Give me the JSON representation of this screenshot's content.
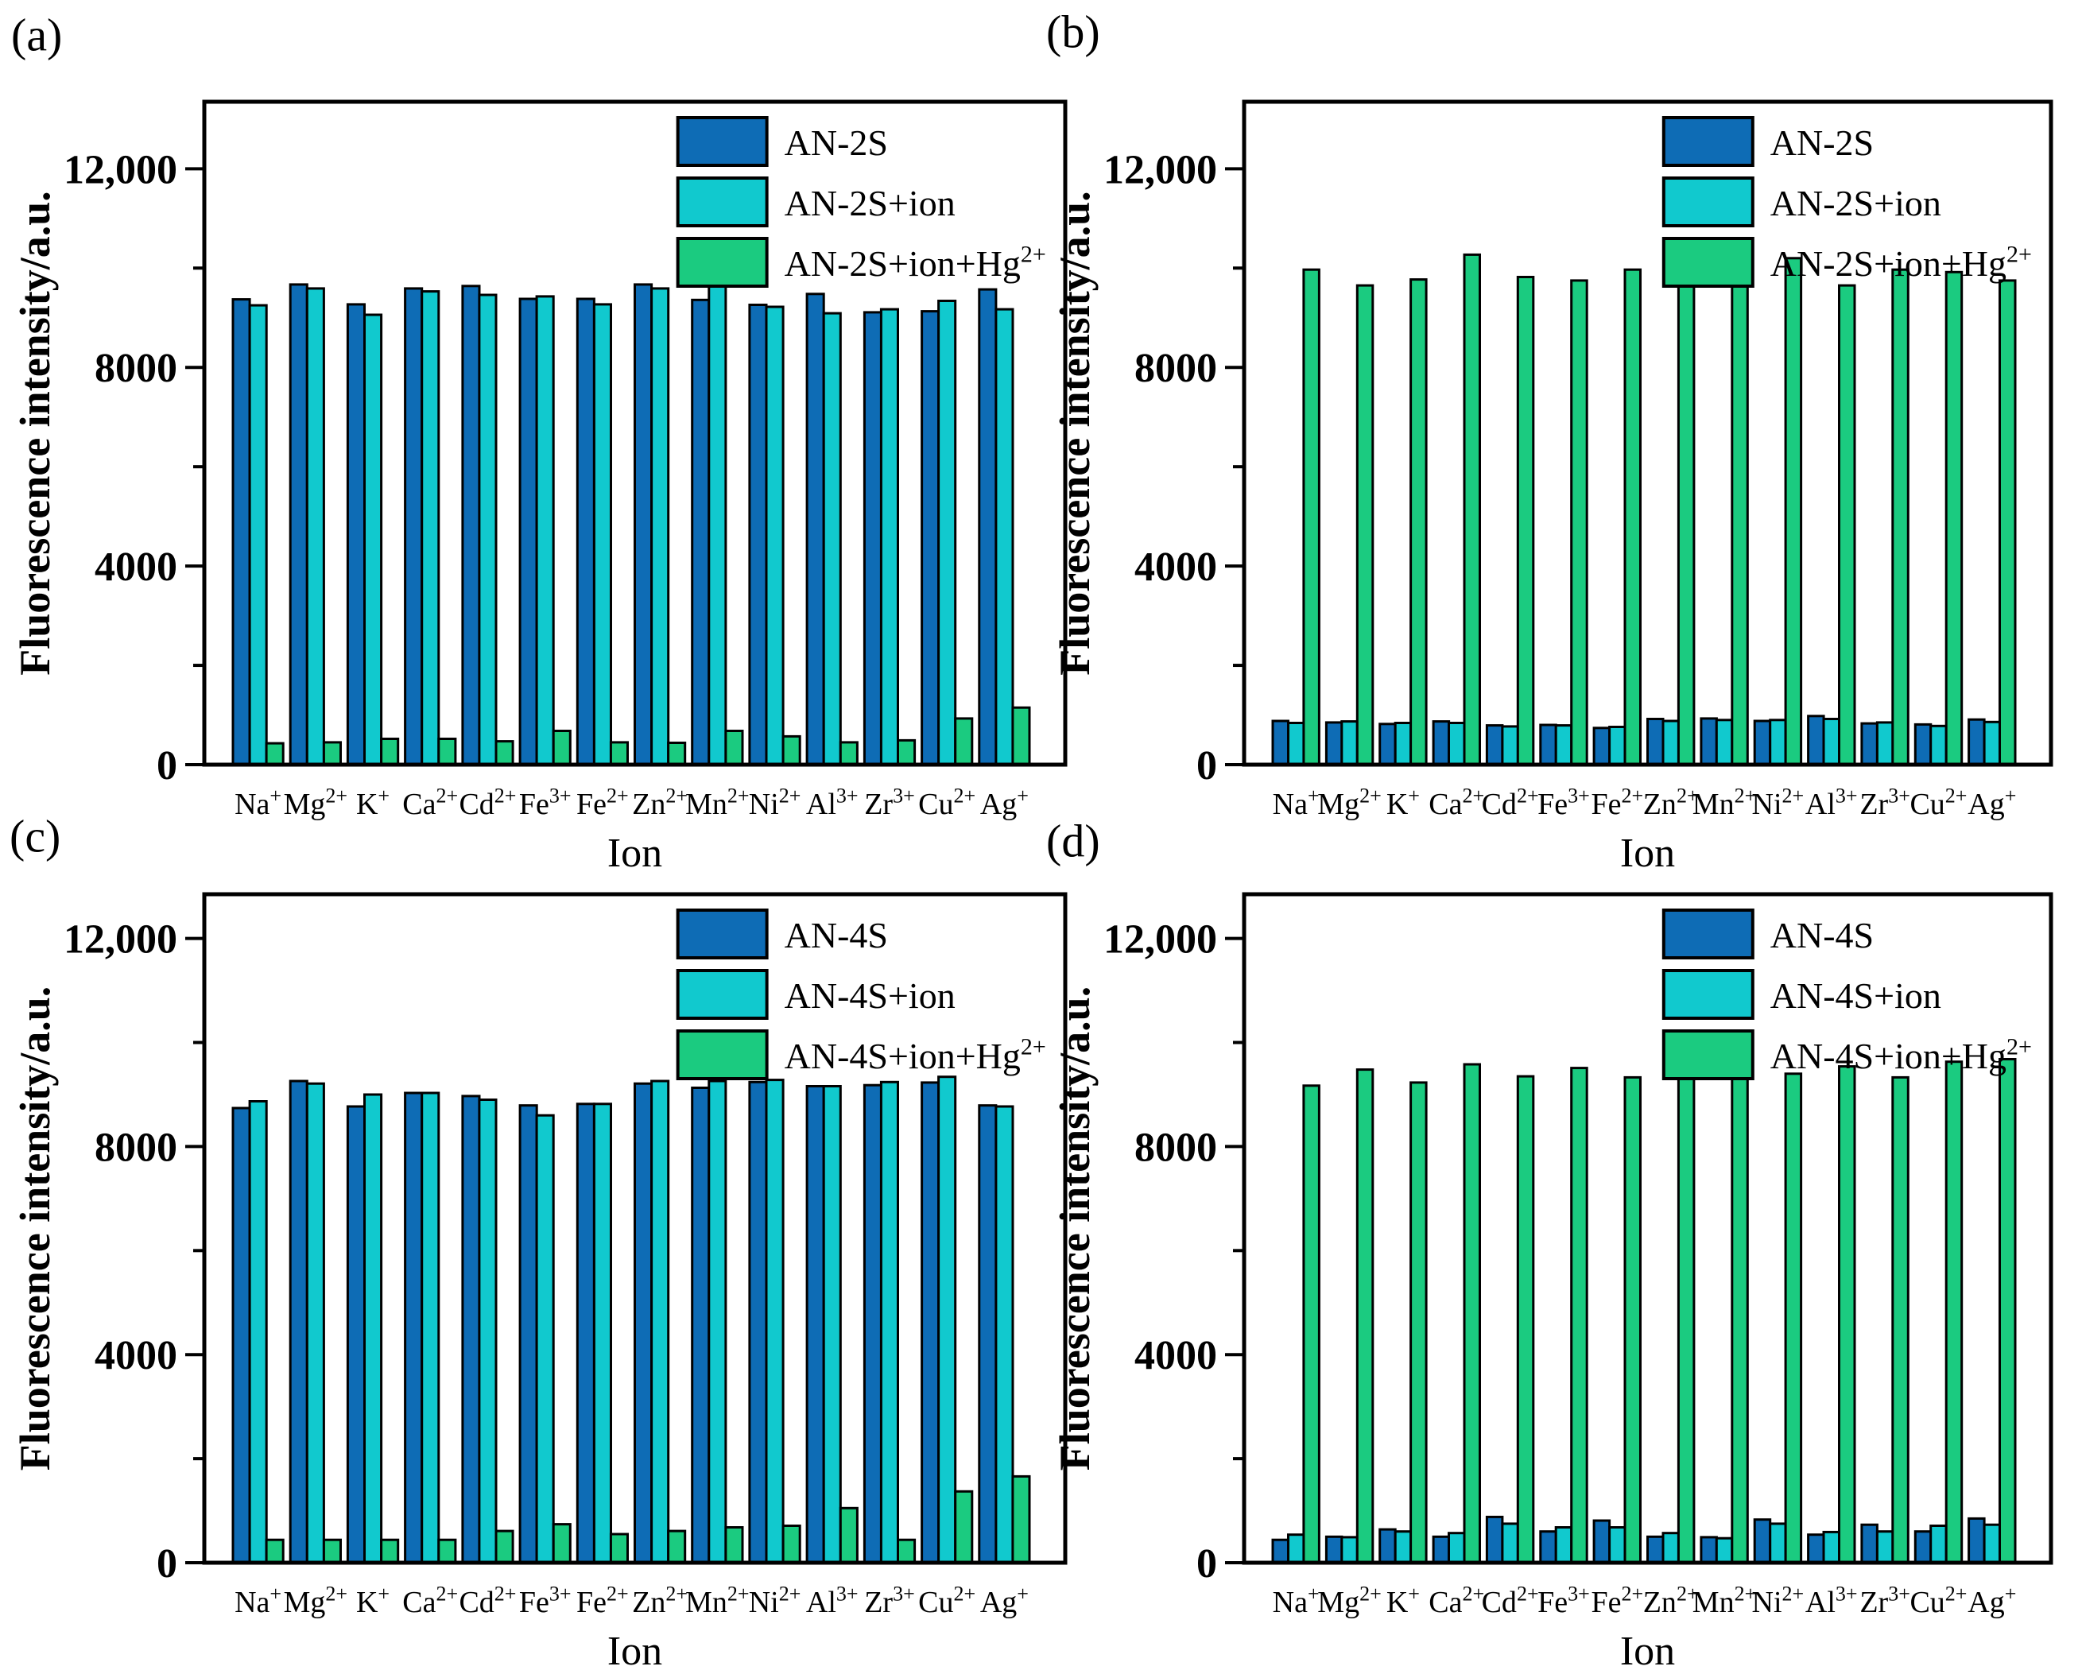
{
  "figure": {
    "background": "#ffffff",
    "text_color": "#000000",
    "bar_outline_color": "#000000",
    "panels": [
      {
        "id": "a",
        "label": "(a)"
      },
      {
        "id": "b",
        "label": "(b)"
      },
      {
        "id": "c",
        "label": "(c)"
      },
      {
        "id": "d",
        "label": "(d)"
      }
    ]
  },
  "chart_data": [
    {
      "panel": "a",
      "type": "bar",
      "title": "",
      "xlabel": "Ion",
      "ylabel": "Fluorescence intensity/a.u.",
      "categories": [
        "Na+",
        "Mg2+",
        "K+",
        "Ca2+",
        "Cd2+",
        "Fe3+",
        "Fe2+",
        "Zn2+",
        "Mn2+",
        "Ni2+",
        "Al3+",
        "Zr3+",
        "Cu2+",
        "Ag+"
      ],
      "ylim": [
        0,
        13350
      ],
      "yticks_major": [
        0,
        4000,
        8000,
        12000
      ],
      "ytick_labels": [
        "0",
        "4000",
        "8000",
        "12,000"
      ],
      "yticks_minor": [
        2000,
        6000,
        10000
      ],
      "grid": false,
      "legend_position": "top-right-inside",
      "series": [
        {
          "name": "AN-2S",
          "color": "#0e6cb5",
          "values": [
            9370,
            9670,
            9270,
            9590,
            9640,
            9380,
            9380,
            9670,
            9360,
            9260,
            9480,
            9110,
            9130,
            9570
          ]
        },
        {
          "name": "AN-2S+ion",
          "color": "#11c9ce",
          "values": [
            9250,
            9590,
            9060,
            9530,
            9460,
            9430,
            9270,
            9590,
            9710,
            9220,
            9090,
            9170,
            9340,
            9170
          ]
        },
        {
          "name": "AN-2S+ion+Hg2+",
          "color": "#1bcb80",
          "values": [
            430,
            450,
            520,
            520,
            470,
            680,
            450,
            440,
            680,
            570,
            450,
            490,
            930,
            1150
          ]
        }
      ]
    },
    {
      "panel": "b",
      "type": "bar",
      "title": "",
      "xlabel": "Ion",
      "ylabel": "Fluorescence intensity/a.u.",
      "categories": [
        "Na+",
        "Mg2+",
        "K+",
        "Ca2+",
        "Cd2+",
        "Fe3+",
        "Fe2+",
        "Zn2+",
        "Mn2+",
        "Ni2+",
        "Al3+",
        "Zr3+",
        "Cu2+",
        "Ag+"
      ],
      "ylim": [
        0,
        13350
      ],
      "yticks_major": [
        0,
        4000,
        8000,
        12000
      ],
      "ytick_labels": [
        "0",
        "4000",
        "8000",
        "12,000"
      ],
      "yticks_minor": [
        2000,
        6000,
        10000
      ],
      "grid": false,
      "legend_position": "top-right-inside",
      "series": [
        {
          "name": "AN-2S",
          "color": "#0e6cb5",
          "values": [
            880,
            850,
            820,
            870,
            790,
            800,
            740,
            920,
            930,
            880,
            980,
            830,
            810,
            910
          ]
        },
        {
          "name": "AN-2S+ion",
          "color": "#11c9ce",
          "values": [
            840,
            870,
            840,
            840,
            770,
            790,
            760,
            880,
            900,
            900,
            920,
            850,
            780,
            860
          ]
        },
        {
          "name": "AN-2S+ion+Hg2+",
          "color": "#1bcb80",
          "values": [
            9970,
            9650,
            9770,
            10270,
            9820,
            9750,
            9970,
            9800,
            9630,
            10200,
            9650,
            9970,
            9920,
            9750
          ]
        }
      ]
    },
    {
      "panel": "c",
      "type": "bar",
      "title": "",
      "xlabel": "Ion",
      "ylabel": "Fluorescence intensity/a.u.",
      "categories": [
        "Na+",
        "Mg2+",
        "K+",
        "Ca2+",
        "Cd2+",
        "Fe3+",
        "Fe2+",
        "Zn2+",
        "Mn2+",
        "Ni2+",
        "Al3+",
        "Zr3+",
        "Cu2+",
        "Ag+"
      ],
      "ylim": [
        0,
        12850
      ],
      "yticks_major": [
        0,
        4000,
        8000,
        12000
      ],
      "ytick_labels": [
        "0",
        "4000",
        "8000",
        "12,000"
      ],
      "yticks_minor": [
        2000,
        6000,
        10000
      ],
      "grid": false,
      "legend_position": "top-right-inside",
      "series": [
        {
          "name": "AN-4S",
          "color": "#0e6cb5",
          "values": [
            8740,
            9260,
            8770,
            9030,
            8970,
            8790,
            8820,
            9210,
            9130,
            9240,
            9160,
            9180,
            9230,
            8790
          ]
        },
        {
          "name": "AN-4S+ion",
          "color": "#11c9ce",
          "values": [
            8870,
            9210,
            9000,
            9030,
            8900,
            8600,
            8820,
            9260,
            9260,
            9280,
            9160,
            9240,
            9340,
            8770
          ]
        },
        {
          "name": "AN-4S+ion+Hg2+",
          "color": "#1bcb80",
          "values": [
            440,
            440,
            440,
            440,
            610,
            740,
            550,
            610,
            680,
            710,
            1050,
            440,
            1370,
            1660
          ]
        }
      ]
    },
    {
      "panel": "d",
      "type": "bar",
      "title": "",
      "xlabel": "Ion",
      "ylabel": "Fluorescence intensity/a.u.",
      "categories": [
        "Na+",
        "Mg2+",
        "K+",
        "Ca2+",
        "Cd2+",
        "Fe3+",
        "Fe2+",
        "Zn2+",
        "Mn2+",
        "Ni2+",
        "Al3+",
        "Zr3+",
        "Cu2+",
        "Ag+"
      ],
      "ylim": [
        0,
        12850
      ],
      "yticks_major": [
        0,
        4000,
        8000,
        12000
      ],
      "ytick_labels": [
        "0",
        "4000",
        "8000",
        "12,000"
      ],
      "yticks_minor": [
        2000,
        6000,
        10000
      ],
      "grid": false,
      "legend_position": "top-right-inside",
      "series": [
        {
          "name": "AN-4S",
          "color": "#0e6cb5",
          "values": [
            440,
            500,
            640,
            500,
            880,
            600,
            810,
            500,
            490,
            830,
            540,
            730,
            600,
            850
          ]
        },
        {
          "name": "AN-4S+ion",
          "color": "#11c9ce",
          "values": [
            540,
            490,
            600,
            570,
            750,
            680,
            680,
            570,
            470,
            750,
            590,
            600,
            710,
            730
          ]
        },
        {
          "name": "AN-4S+ion+Hg2+",
          "color": "#1bcb80",
          "values": [
            9170,
            9480,
            9230,
            9580,
            9350,
            9510,
            9330,
            9660,
            9300,
            9400,
            9540,
            9330,
            9630,
            9680
          ]
        }
      ]
    }
  ]
}
